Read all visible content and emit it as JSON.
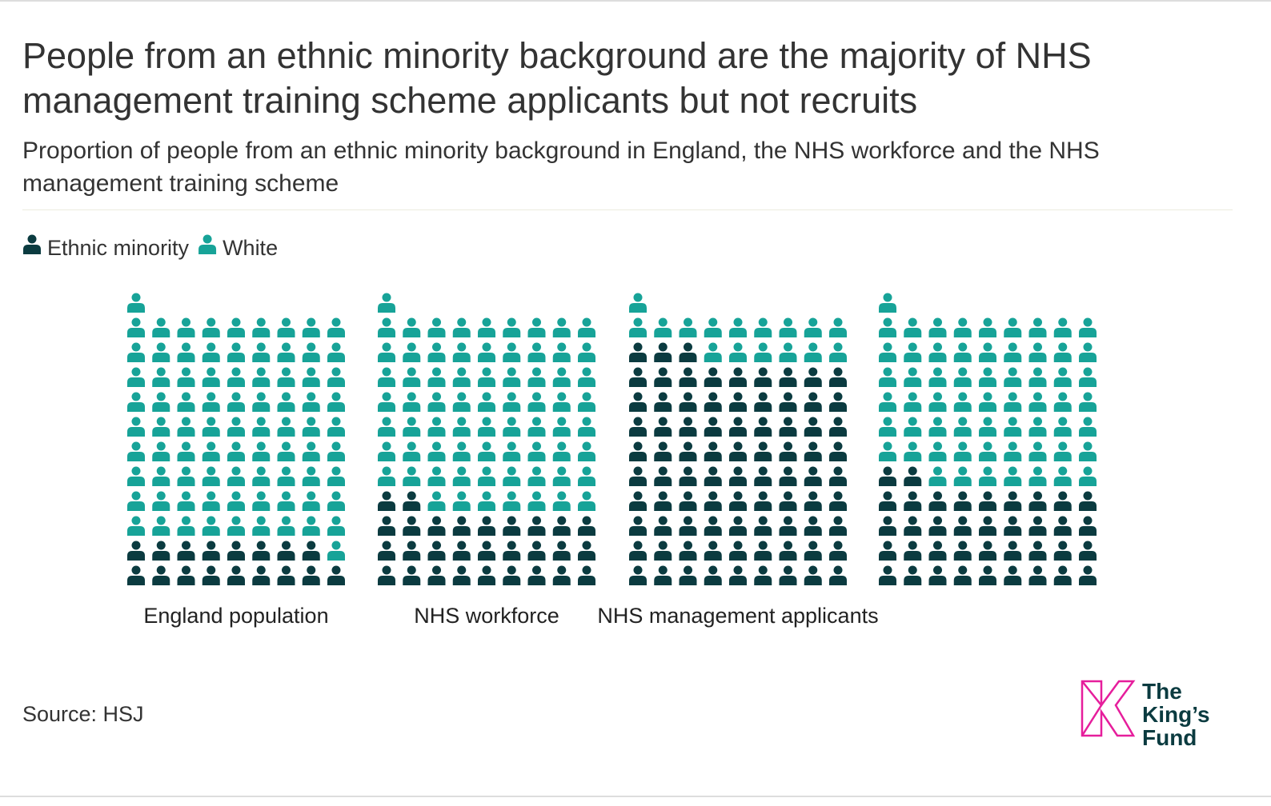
{
  "title": "People from an ethnic minority background are the majority of NHS management training scheme applicants but not recruits",
  "subtitle": "Proportion of people from an ethnic minority background in England, the NHS workforce and the NHS management training scheme",
  "source": "Source: HSJ",
  "logo": {
    "lines": [
      "The",
      "King’s",
      "Fund"
    ]
  },
  "chart_data": {
    "type": "waffle",
    "categories": [
      "England population",
      "NHS workforce",
      "NHS management applicants",
      null
    ],
    "series": [
      {
        "name": "Ethnic minority",
        "color": "#0b3b40",
        "values": [
          17,
          29,
          84,
          38
        ]
      },
      {
        "name": "White",
        "color": "#17a398",
        "values": [
          83,
          71,
          16,
          62
        ]
      }
    ]
  }
}
